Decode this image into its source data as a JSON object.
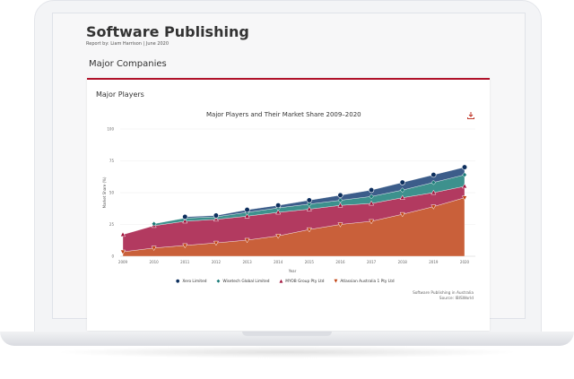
{
  "header": {
    "title": "Software Publishing",
    "byline": "Report by: Liam Harrison | June 2020",
    "section": "Major Companies"
  },
  "card": {
    "title": "Major Players",
    "download_icon": "download-icon"
  },
  "footer": {
    "line1": "Software Publishing in Australia",
    "line2": "Source: IBISWorld"
  },
  "chart_data": {
    "type": "area",
    "stacked": true,
    "title": "Major Players and Their Market Share 2009–2020",
    "xlabel": "Year",
    "ylabel": "Market Share (%)",
    "ylim": [
      0,
      100
    ],
    "yticks": [
      "0",
      "25",
      "50",
      "75",
      "100"
    ],
    "x": [
      "2009",
      "2010",
      "2011",
      "2012",
      "2013",
      "2014",
      "2015",
      "2016",
      "2017",
      "2018",
      "2019",
      "2020"
    ],
    "legend_position": "bottom",
    "series": [
      {
        "name": "Atlassian Australia 1 Pty Ltd",
        "color": "#c9603a",
        "marker": "triangle-down",
        "values": [
          3.5,
          6.5,
          8.5,
          10.5,
          12.7,
          16,
          21,
          25,
          27.5,
          33,
          39,
          46
        ]
      },
      {
        "name": "MYOB Group Pty Ltd",
        "color": "#b23a60",
        "marker": "triangle",
        "values": [
          13.5,
          17.5,
          19,
          18.5,
          18.8,
          18.5,
          16,
          15,
          14,
          13,
          11,
          9
        ]
      },
      {
        "name": "Wisetech Global Limited",
        "color": "#3d918d",
        "marker": "diamond",
        "values": [
          null,
          1.5,
          2.5,
          2,
          3,
          3.5,
          4,
          4,
          5.5,
          6,
          8,
          9
        ]
      },
      {
        "name": "Xero Limited",
        "color": "#3c5d8a",
        "marker": "circle",
        "values": [
          null,
          null,
          1,
          1,
          2,
          2,
          3,
          4,
          5,
          6,
          6,
          6
        ]
      }
    ],
    "marker_colors": [
      "#c0400f",
      "#a0103a",
      "#1a7a78",
      "#0d2f5e"
    ],
    "legend_order": [
      3,
      2,
      1,
      0
    ]
  }
}
